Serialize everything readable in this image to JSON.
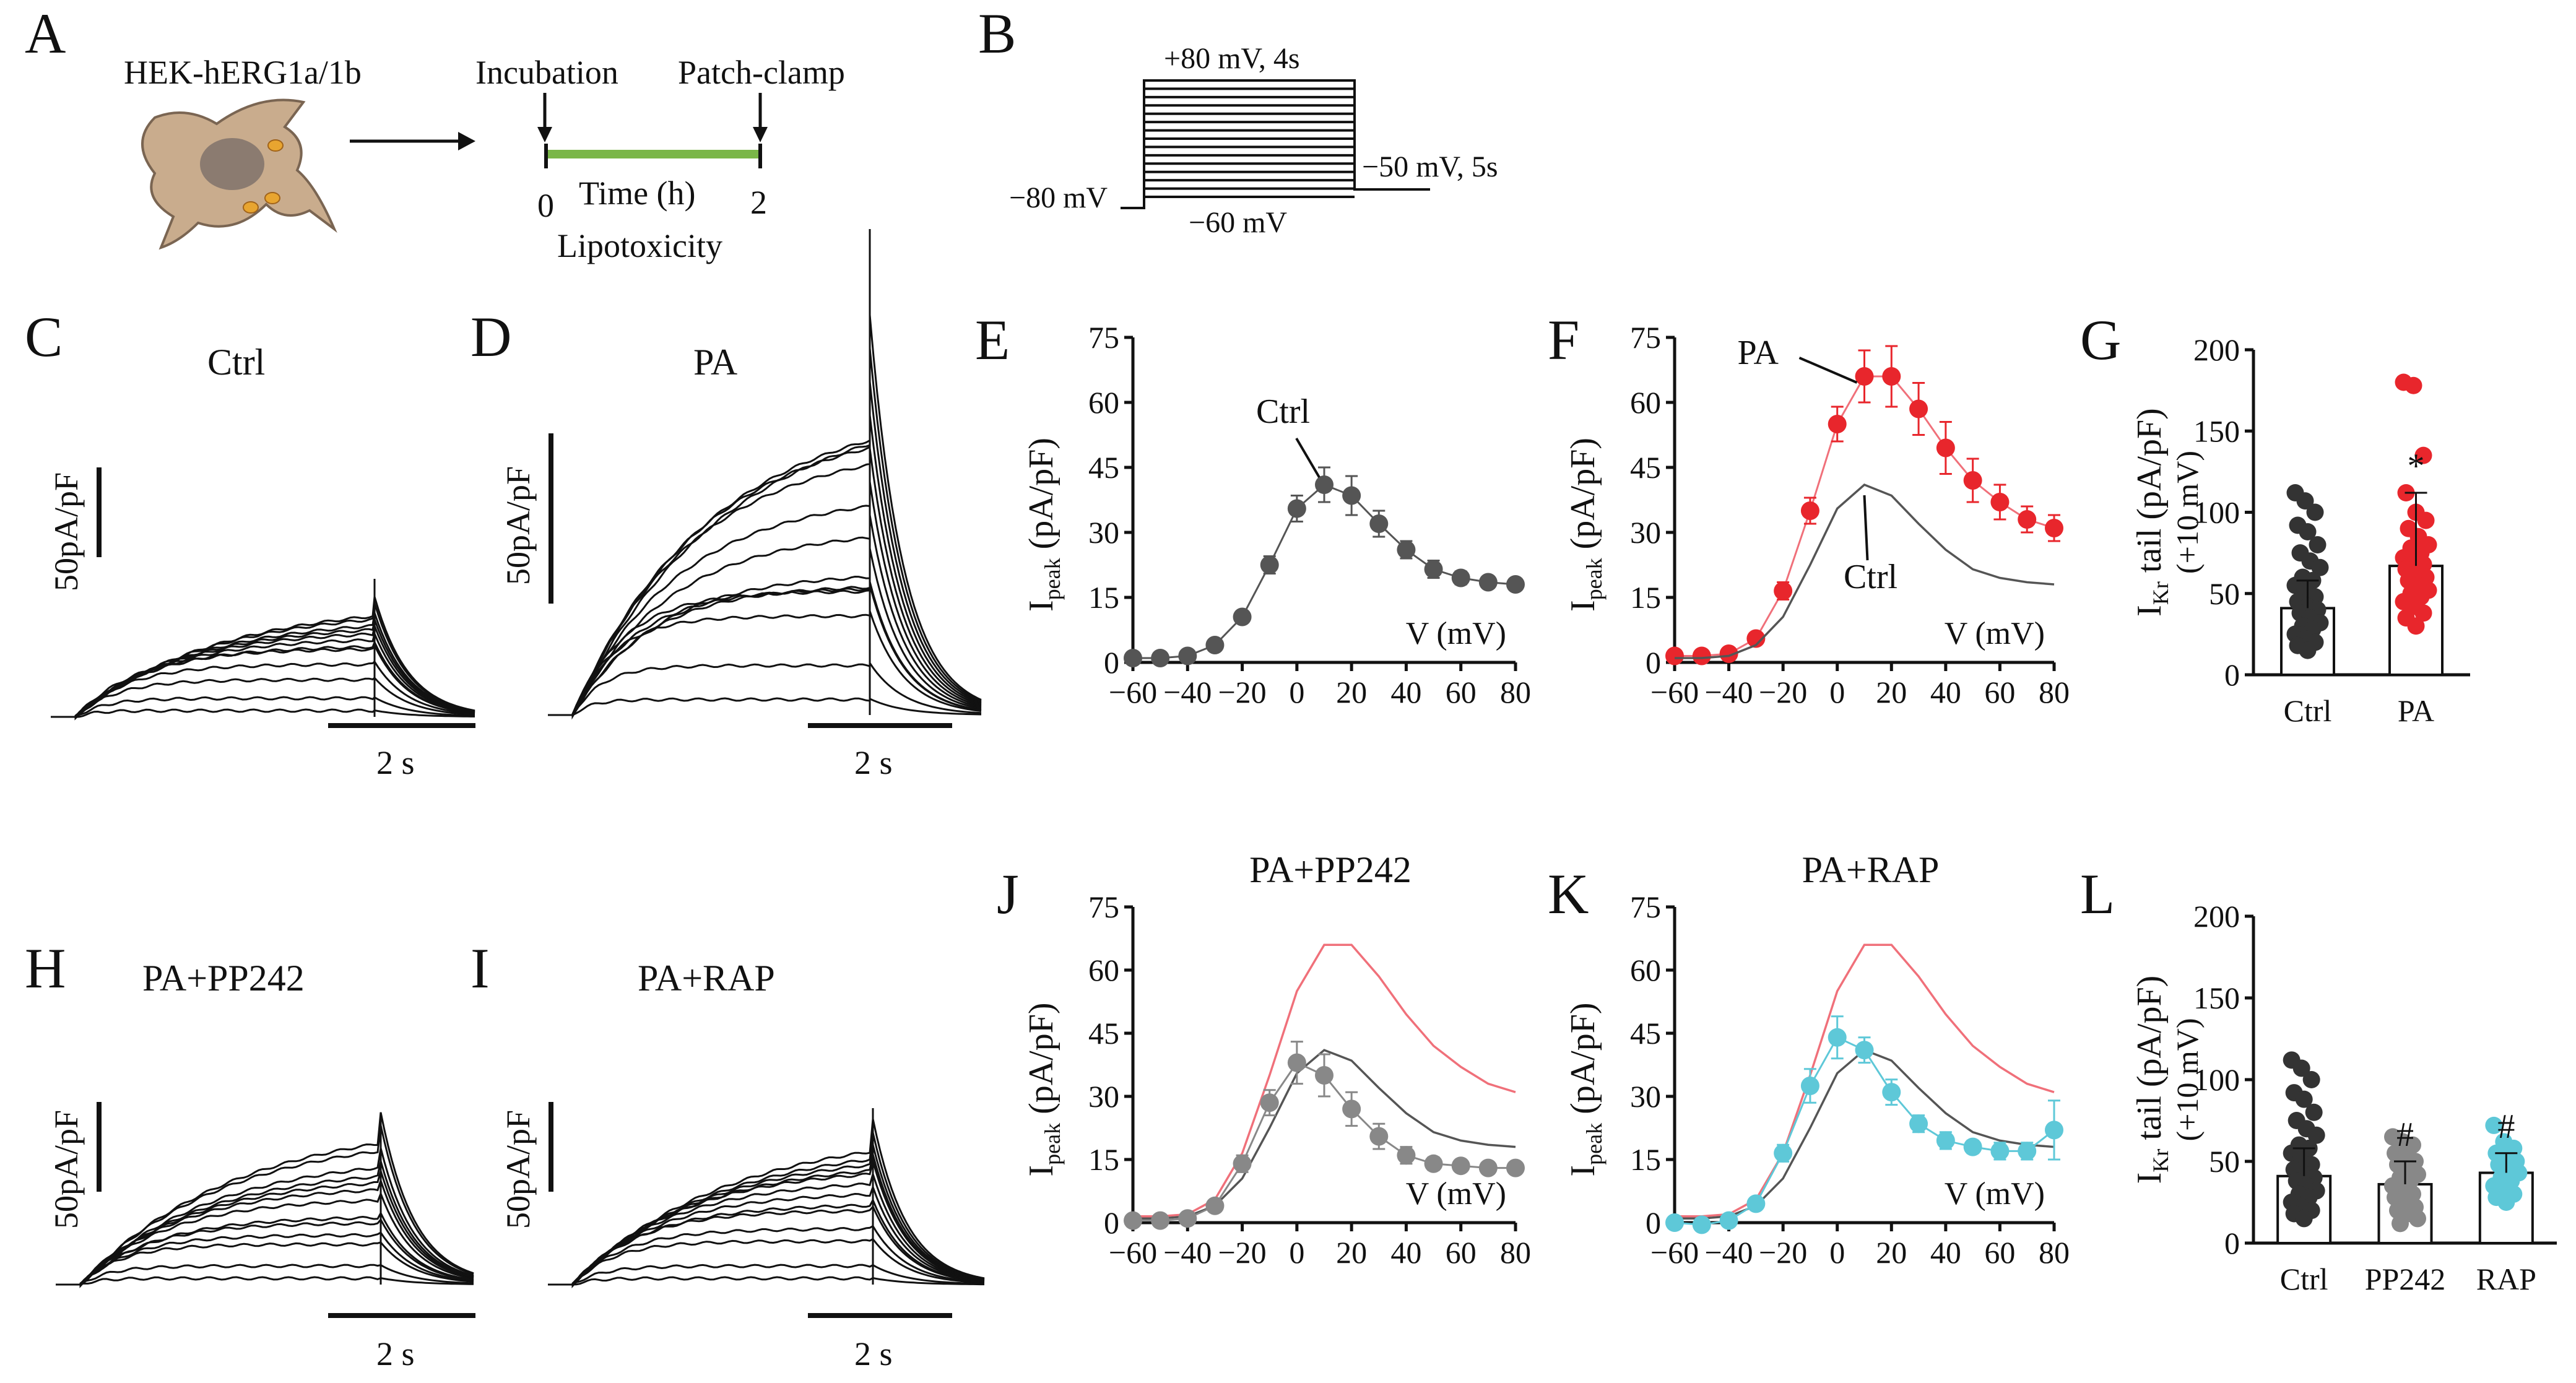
{
  "colors": {
    "black": "#111111",
    "ctrl": "#555555",
    "ctrl_dark": "#333333",
    "pa": "#e8262c",
    "pa_line": "#f0707a",
    "pp242": "#888888",
    "rap": "#5ec8d8",
    "green": "#7ab648",
    "cell": "#c9ac8d",
    "nucleus": "#8b7b70",
    "lipid": "#e8a530"
  },
  "panel_A": {
    "letter": "A",
    "cell_label": "HEK-hERG1a/1b",
    "incubation": "Incubation",
    "patch_clamp": "Patch-clamp",
    "time_label": "Time (h)",
    "t0": "0",
    "t2": "2",
    "lipotoxicity": "Lipotoxicity"
  },
  "panel_B": {
    "letter": "B",
    "step_label": "+80 mV, 4s",
    "hold_label": "−80 mV",
    "tail_label": "−50 mV, 5s",
    "bottom_label": "−60 mV"
  },
  "traces": [
    {
      "letter": "C",
      "title": "Ctrl",
      "scale_label": "50pA/pF",
      "time_label": "2 s"
    },
    {
      "letter": "D",
      "title": "PA",
      "scale_label": "50pA/pF",
      "time_label": "2 s"
    },
    {
      "letter": "H",
      "title": "PA+PP242",
      "scale_label": "50pA/pF",
      "time_label": "2 s"
    },
    {
      "letter": "I",
      "title": "PA+RAP",
      "scale_label": "50pA/pF",
      "time_label": "2 s"
    }
  ],
  "chart_data": [
    {
      "panel": "E",
      "type": "line",
      "title": "",
      "xlabel": "V (mV)",
      "ylabel_main": "I",
      "ylabel_sub": "peak",
      "ylabel_unit": " (pA/pF)",
      "xlim": [
        -60,
        80
      ],
      "ylim": [
        0,
        75
      ],
      "xticks": [
        -60,
        -40,
        -20,
        0,
        20,
        40,
        60,
        80
      ],
      "yticks": [
        0,
        15,
        30,
        45,
        60,
        75
      ],
      "x": [
        -60,
        -50,
        -40,
        -30,
        -20,
        -10,
        0,
        10,
        20,
        30,
        40,
        50,
        60,
        70,
        80
      ],
      "series": [
        {
          "name": "Ctrl",
          "role": "ctrl",
          "values": [
            1,
            1,
            1.5,
            4,
            10.5,
            22.5,
            35.5,
            41,
            38.5,
            32,
            26,
            21.5,
            19.5,
            18.5,
            18
          ],
          "errors": [
            0,
            0,
            0,
            0,
            1,
            2,
            3,
            4,
            4.5,
            3,
            2,
            2,
            1.5,
            1,
            1
          ]
        }
      ],
      "annotations": [
        {
          "text": "Ctrl",
          "x": 10,
          "y": 41
        }
      ]
    },
    {
      "panel": "F",
      "type": "line",
      "title": "",
      "xlabel": "V (mV)",
      "ylabel_main": "I",
      "ylabel_sub": "peak",
      "ylabel_unit": " (pA/pF)",
      "xlim": [
        -60,
        80
      ],
      "ylim": [
        0,
        75
      ],
      "xticks": [
        -60,
        -40,
        -20,
        0,
        20,
        40,
        60,
        80
      ],
      "yticks": [
        0,
        15,
        30,
        45,
        60,
        75
      ],
      "x": [
        -60,
        -50,
        -40,
        -30,
        -20,
        -10,
        0,
        10,
        20,
        30,
        40,
        50,
        60,
        70,
        80
      ],
      "series": [
        {
          "name": "PA",
          "role": "pa",
          "values": [
            1.5,
            1.5,
            2,
            5.5,
            16.5,
            35,
            55,
            66,
            66,
            58.5,
            49.5,
            42,
            37,
            33,
            31
          ],
          "errors": [
            0,
            0,
            0.5,
            1,
            2,
            3,
            4,
            6,
            7,
            6,
            6,
            5,
            4,
            3,
            3
          ]
        },
        {
          "name": "Ctrl",
          "role": "ctrl_line",
          "values": [
            1,
            1,
            1.5,
            4,
            10.5,
            22.5,
            35.5,
            41,
            38.5,
            32,
            26,
            21.5,
            19.5,
            18.5,
            18
          ]
        }
      ],
      "annotations": [
        {
          "text": "PA",
          "x": 10,
          "y": 66
        },
        {
          "text": "Ctrl",
          "x": 10,
          "y": 40
        }
      ]
    },
    {
      "panel": "J",
      "type": "line",
      "title": "PA+PP242",
      "xlabel": "V (mV)",
      "ylabel_main": "I",
      "ylabel_sub": "peak",
      "ylabel_unit": " (pA/pF)",
      "xlim": [
        -60,
        80
      ],
      "ylim": [
        0,
        75
      ],
      "xticks": [
        -60,
        -40,
        -20,
        0,
        20,
        40,
        60,
        80
      ],
      "yticks": [
        0,
        15,
        30,
        45,
        60,
        75
      ],
      "x": [
        -60,
        -50,
        -40,
        -30,
        -20,
        -10,
        0,
        10,
        20,
        30,
        40,
        50,
        60,
        70,
        80
      ],
      "series": [
        {
          "name": "PA",
          "role": "pa_line",
          "values": [
            1.5,
            1.5,
            2,
            5.5,
            16.5,
            35,
            55,
            66,
            66,
            58.5,
            49.5,
            42,
            37,
            33,
            31
          ]
        },
        {
          "name": "Ctrl",
          "role": "ctrl_line",
          "values": [
            1,
            1,
            1.5,
            4,
            10.5,
            22.5,
            35.5,
            41,
            38.5,
            32,
            26,
            21.5,
            19.5,
            18.5,
            18
          ]
        },
        {
          "name": "PA+PP242",
          "role": "pp242",
          "values": [
            0.5,
            0.5,
            1,
            4,
            14,
            28.5,
            38,
            35,
            27,
            20.5,
            16,
            14,
            13.5,
            13,
            13
          ],
          "errors": [
            0,
            0,
            0,
            0.5,
            2,
            3,
            5,
            5,
            4,
            3,
            2,
            1.5,
            1,
            1,
            1
          ]
        }
      ],
      "annotations": []
    },
    {
      "panel": "K",
      "type": "line",
      "title": "PA+RAP",
      "xlabel": "V (mV)",
      "ylabel_main": "I",
      "ylabel_sub": "peak",
      "ylabel_unit": " (pA/pF)",
      "xlim": [
        -60,
        80
      ],
      "ylim": [
        0,
        75
      ],
      "xticks": [
        -60,
        -40,
        -20,
        0,
        20,
        40,
        60,
        80
      ],
      "yticks": [
        0,
        15,
        30,
        45,
        60,
        75
      ],
      "x": [
        -60,
        -50,
        -40,
        -30,
        -20,
        -10,
        0,
        10,
        20,
        30,
        40,
        50,
        60,
        70,
        80
      ],
      "series": [
        {
          "name": "PA",
          "role": "pa_line",
          "values": [
            1.5,
            1.5,
            2,
            5.5,
            16.5,
            35,
            55,
            66,
            66,
            58.5,
            49.5,
            42,
            37,
            33,
            31
          ]
        },
        {
          "name": "Ctrl",
          "role": "ctrl_line",
          "values": [
            1,
            1,
            1.5,
            4,
            10.5,
            22.5,
            35.5,
            41,
            38.5,
            32,
            26,
            21.5,
            19.5,
            18.5,
            18
          ]
        },
        {
          "name": "PA+RAP",
          "role": "rap",
          "values": [
            0,
            -0.5,
            0.5,
            4.5,
            16.5,
            32.5,
            44,
            41,
            31,
            23.5,
            19.5,
            18,
            17,
            17,
            22
          ],
          "errors": [
            0,
            0,
            0,
            1,
            2,
            4,
            5,
            3,
            3,
            2,
            2,
            1.5,
            2,
            2,
            7
          ]
        }
      ],
      "annotations": []
    },
    {
      "panel": "G",
      "type": "bar",
      "title": "",
      "ylabel_main": "I",
      "ylabel_sub": "Kr",
      "ylabel_unit": " tail (pA/pF)",
      "ylabel2": "(+10 mV)",
      "ylim": [
        0,
        200
      ],
      "yticks": [
        0,
        50,
        100,
        150,
        200
      ],
      "categories": [
        "Ctrl",
        "PA"
      ],
      "values": [
        41,
        67
      ],
      "errors": [
        17,
        45
      ],
      "marks": [
        "",
        "*"
      ],
      "points": [
        [
          112,
          107,
          100,
          92,
          88,
          80,
          75,
          70,
          66,
          60,
          58,
          55,
          52,
          48,
          45,
          42,
          40,
          38,
          35,
          32,
          30,
          28,
          25,
          22,
          20,
          18,
          15
        ],
        [
          180,
          178,
          135,
          112,
          100,
          95,
          90,
          85,
          80,
          78,
          75,
          72,
          70,
          68,
          65,
          62,
          60,
          58,
          55,
          52,
          50,
          48,
          45,
          42,
          38,
          35,
          30
        ]
      ],
      "roles": [
        "ctrl_dark",
        "pa"
      ]
    },
    {
      "panel": "L",
      "type": "bar",
      "title": "",
      "ylabel_main": "I",
      "ylabel_sub": "Kr",
      "ylabel_unit": " tail (pA/pF)",
      "ylabel2": "(+10 mV)",
      "ylim": [
        0,
        200
      ],
      "yticks": [
        0,
        50,
        100,
        150,
        200
      ],
      "categories": [
        "Ctrl",
        "PP242",
        "RAP"
      ],
      "values": [
        41,
        36,
        43
      ],
      "errors": [
        17,
        14,
        12
      ],
      "marks": [
        "",
        "#",
        "#"
      ],
      "points": [
        [
          112,
          107,
          100,
          92,
          88,
          80,
          75,
          70,
          66,
          60,
          58,
          55,
          52,
          48,
          45,
          42,
          40,
          38,
          35,
          32,
          30,
          28,
          25,
          22,
          20,
          18,
          15
        ],
        [
          65,
          62,
          60,
          55,
          52,
          50,
          48,
          45,
          42,
          40,
          38,
          35,
          32,
          30,
          28,
          25,
          22,
          20,
          18,
          15,
          12
        ],
        [
          72,
          62,
          58,
          55,
          52,
          50,
          48,
          45,
          43,
          40,
          38,
          35,
          32,
          30,
          28,
          25
        ]
      ],
      "roles": [
        "ctrl_dark",
        "pp242",
        "rap"
      ]
    }
  ]
}
